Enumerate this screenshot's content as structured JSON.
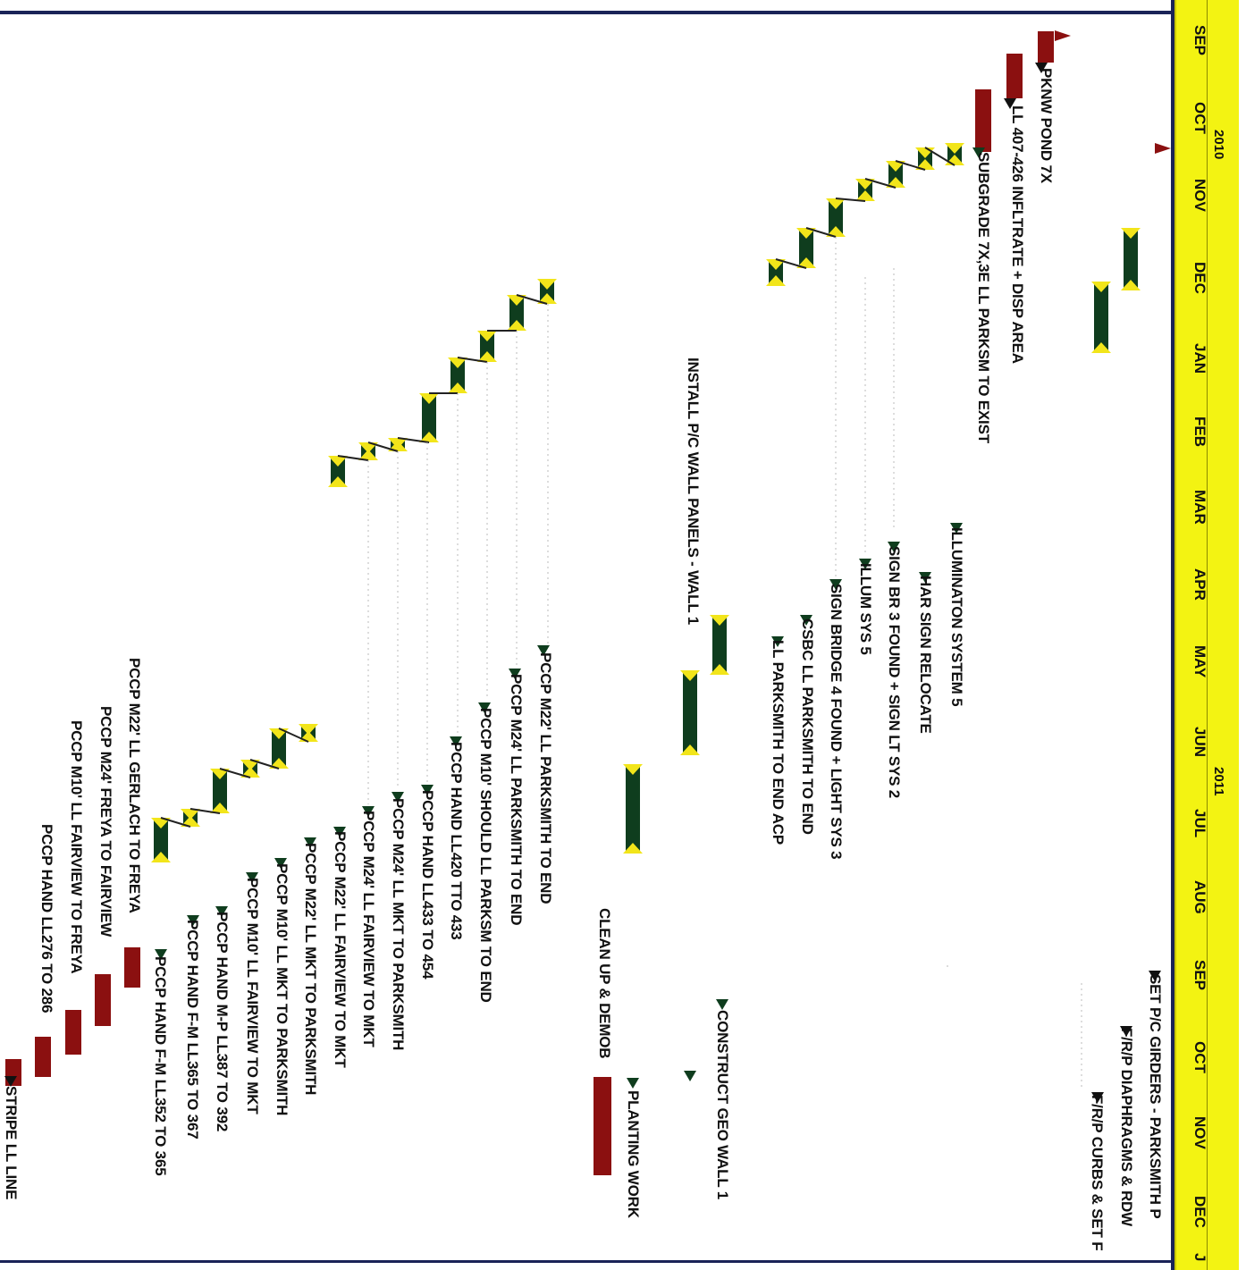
{
  "timeline": {
    "years": [
      {
        "label": "2010"
      },
      {
        "label": "2011"
      }
    ],
    "months": [
      "SEP",
      "OCT",
      "NOV",
      "DEC",
      "JAN",
      "FEB",
      "MAR",
      "APR",
      "MAY",
      "JUN",
      "JUL",
      "AUG",
      "SEP",
      "OCT",
      "NOV",
      "DEC",
      "J"
    ]
  },
  "tasks": [
    {
      "label": "PKNW POND 7X"
    },
    {
      "label": "LL 407-426 INFLTRATE + DISP AREA"
    },
    {
      "label": "SUBGRADE 7X,3E LL PARKSM TO EXIST"
    },
    {
      "label": "ILLUMINATON SYSTEM 5"
    },
    {
      "label": "HAR SIGN RELOCATE"
    },
    {
      "label": "SIGN BR 3 FOUND + SIGN LT SYS 2"
    },
    {
      "label": "ILLUM SYS 5"
    },
    {
      "label": "SIGN BRIDGE 4 FOUND + LIGHT SYS 3"
    },
    {
      "label": "CSBC LL PARKSMITH TO END"
    },
    {
      "label": "LL PARKSMITH TO END ACP"
    },
    {
      "label": "INSTALL P/C WALL PANELS - WALL 1"
    },
    {
      "label": "CONSTRUCT GEO WALL 1"
    },
    {
      "label": "PLANTING WORK"
    },
    {
      "label": "CLEAN UP & DEMOB"
    },
    {
      "label": "PCCP M22' LL PARKSMITH TO END"
    },
    {
      "label": "PCCP M24' LL PARKSMITH TO END"
    },
    {
      "label": "PCCP M10' SHOULD LL PARKSM TO END"
    },
    {
      "label": "PCCP HAND LL420 TTO 433"
    },
    {
      "label": "PCCP HAND LL433 TO 454"
    },
    {
      "label": "PCCP M24' LL MKT TO PARKSMITH"
    },
    {
      "label": "PCCP M24' LL FAIRVIEW TO MKT"
    },
    {
      "label": "PCCP M22' LL FAIRVIEW TO MKT"
    },
    {
      "label": "PCCP M22' LL MKT TO PARKSMITH"
    },
    {
      "label": "PCCP M10' LL MKT TO PARKSMITH"
    },
    {
      "label": "PCCP M10' LL FAIRVIEW TO MKT"
    },
    {
      "label": "PCCP HAND M-P LL387 TO 392"
    },
    {
      "label": "PCCP HAND F-M LL365 TO 367"
    },
    {
      "label": "PCCP HAND F-M LL352 TO 365"
    },
    {
      "label": "PCCP M22' LL GERLACH TO FREYA"
    },
    {
      "label": "PCCP M24' FREYA TO FAIRVIEW"
    },
    {
      "label": "PCCP M10' LL FAIRVIEW TO FREYA"
    },
    {
      "label": "PCCP HAND LL276 TO 286"
    },
    {
      "label": "STRIPE LL LINE"
    },
    {
      "label": "SET P/C GIRDERS - PARKSMITH P"
    },
    {
      "label": "F/R/P DIAPHRAGMS & RDW"
    },
    {
      "label": "F/R/P CURBS & SET F"
    }
  ],
  "colors": {
    "header_bg": "#f3f312",
    "frame": "#1a2357",
    "critical": "#8b1010",
    "progress": "#0f3d1e",
    "milestone_yellow": "#f2e51a"
  }
}
